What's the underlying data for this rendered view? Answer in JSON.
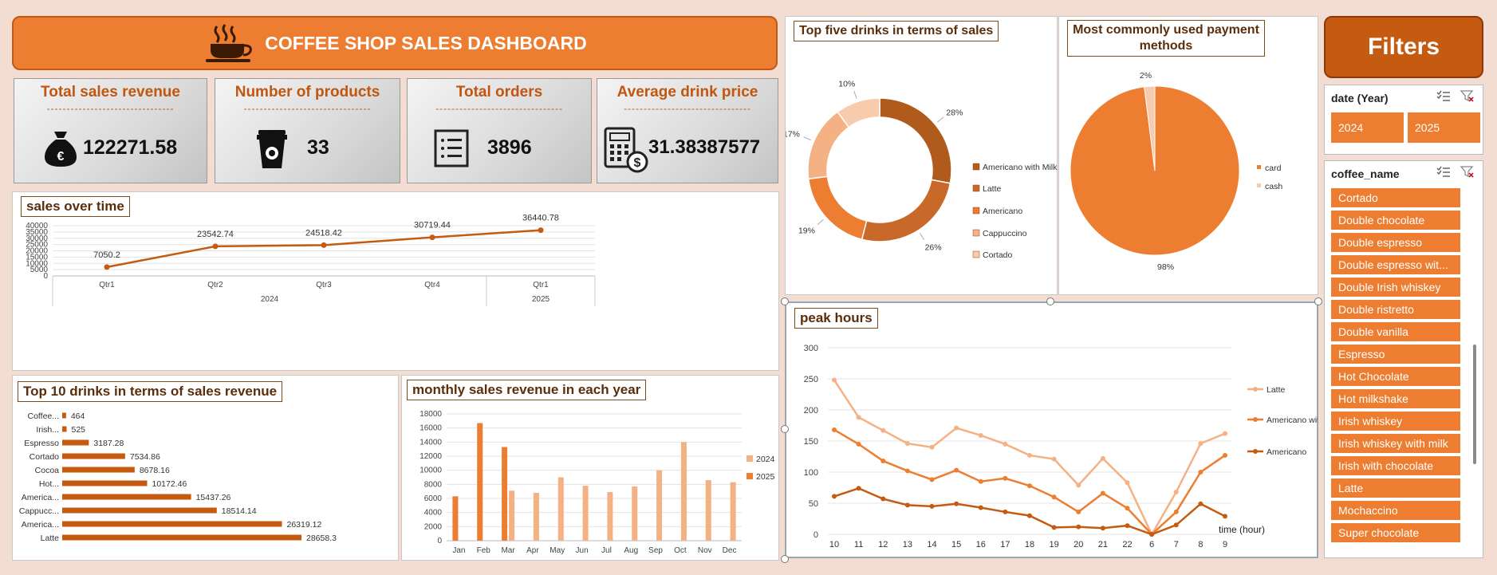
{
  "header": {
    "title": "COFFEE SHOP SALES DASHBOARD",
    "icon": "coffee-cup-icon"
  },
  "kpis": [
    {
      "title": "Total sales revenue",
      "value": "122271.58",
      "icon": "money-bag-icon"
    },
    {
      "title": "Number of products",
      "value": "33",
      "icon": "takeaway-cup-icon"
    },
    {
      "title": "Total orders",
      "value": "3896",
      "icon": "order-list-icon"
    },
    {
      "title": "Average drink price",
      "value": "31.38387577",
      "icon": "calculator-dollar-icon"
    }
  ],
  "kpi_dashes": "--------------------------------",
  "colors": {
    "accent": "#ed7d31",
    "dark": "#c55a11",
    "light": "#f4b183",
    "pale": "#f8cbad"
  },
  "chart_data": [
    {
      "id": "sales_over_time",
      "type": "line",
      "title": "sales over time",
      "categories": [
        "Qtr1",
        "Qtr2",
        "Qtr3",
        "Qtr4",
        "Qtr1"
      ],
      "groups": [
        {
          "label": "2024",
          "span": 4
        },
        {
          "label": "2025",
          "span": 1
        }
      ],
      "values": [
        7050.2,
        23542.74,
        24518.42,
        30719.44,
        36440.78
      ],
      "value_labels": [
        "7050.2",
        "23542.74",
        "24518.42",
        "30719.44",
        "36440.78"
      ],
      "ylim": [
        0,
        40000
      ],
      "yticks": [
        "0",
        "5000",
        "10000",
        "15000",
        "20000",
        "25000",
        "30000",
        "35000",
        "40000"
      ]
    },
    {
      "id": "top10_drinks",
      "type": "bar",
      "title": "Top 10 drinks in terms of sales revenue",
      "categories": [
        "Coffee...",
        "Irish...",
        "Espresso",
        "Cortado",
        "Cocoa",
        "Hot...",
        "America...",
        "Cappucc...",
        "America...",
        "Latte"
      ],
      "values": [
        464,
        525,
        3187.28,
        7534.86,
        8678.16,
        10172.46,
        15437.26,
        18514.14,
        26319.12,
        28658.3
      ],
      "value_labels": [
        "464",
        "525",
        "3187.28",
        "7534.86",
        "8678.16",
        "10172.46",
        "15437.26",
        "18514.14",
        "26319.12",
        "28658.3"
      ]
    },
    {
      "id": "monthly_revenue",
      "type": "bar",
      "title": "monthly sales revenue in each year",
      "categories": [
        "Jan",
        "Feb",
        "Mar",
        "Apr",
        "May",
        "Jun",
        "Jul",
        "Aug",
        "Sep",
        "Oct",
        "Nov",
        "Dec"
      ],
      "series": [
        {
          "name": "2024",
          "values": [
            null,
            null,
            7100,
            6800,
            9000,
            7800,
            6900,
            7700,
            10000,
            14000,
            8600,
            8300
          ]
        },
        {
          "name": "2025",
          "values": [
            6300,
            16700,
            13300,
            null,
            null,
            null,
            null,
            null,
            null,
            null,
            null,
            null
          ]
        }
      ],
      "ylim": [
        0,
        18000
      ],
      "yticks": [
        "0",
        "2000",
        "4000",
        "6000",
        "8000",
        "10000",
        "12000",
        "14000",
        "16000",
        "18000"
      ]
    },
    {
      "id": "top5_drinks",
      "type": "pie",
      "title": "Top five drinks in terms of sales",
      "labels": [
        "Americano with Milk",
        "Latte",
        "Americano",
        "Cappuccino",
        "Cortado"
      ],
      "values": [
        28,
        26,
        19,
        17,
        10
      ],
      "value_labels": [
        "28%",
        "26%",
        "19%",
        "17%",
        "10%"
      ]
    },
    {
      "id": "payment_methods",
      "type": "pie",
      "title": "Most commonly used payment methods",
      "labels": [
        "card",
        "cash"
      ],
      "values": [
        98,
        2
      ],
      "value_labels": [
        "98%",
        "2%"
      ]
    },
    {
      "id": "peak_hours",
      "type": "line",
      "title": "peak hours",
      "categories": [
        "10",
        "11",
        "12",
        "13",
        "14",
        "15",
        "16",
        "17",
        "18",
        "19",
        "20",
        "21",
        "22",
        "6",
        "7",
        "8",
        "9"
      ],
      "xlabel": "time (hour)",
      "series": [
        {
          "name": "Latte",
          "values": [
            248,
            188,
            167,
            146,
            140,
            171,
            159,
            145,
            127,
            121,
            79,
            122,
            83,
            0,
            68,
            146,
            162
          ]
        },
        {
          "name": "Americano with Milk",
          "values": [
            168,
            145,
            118,
            102,
            88,
            103,
            85,
            90,
            78,
            60,
            36,
            66,
            42,
            0,
            36,
            100,
            127
          ]
        },
        {
          "name": "Americano",
          "values": [
            61,
            74,
            57,
            47,
            45,
            49,
            43,
            36,
            30,
            11,
            12,
            10,
            14,
            0,
            15,
            49,
            29
          ]
        }
      ],
      "ylim": [
        0,
        300
      ],
      "yticks": [
        "0",
        "50",
        "100",
        "150",
        "200",
        "250",
        "300"
      ]
    }
  ],
  "filters": {
    "title": "Filters",
    "year_slicer": {
      "header": "date (Year)",
      "items": [
        "2024",
        "2025"
      ]
    },
    "coffee_slicer": {
      "header": "coffee_name",
      "items": [
        "Cortado",
        "Double chocolate",
        "Double espresso",
        "Double espresso wit...",
        "Double Irish whiskey",
        "Double ristretto",
        "Double vanilla",
        "Espresso",
        "Hot Chocolate",
        "Hot milkshake",
        "Irish whiskey",
        "Irish whiskey with milk",
        "Irish with chocolate",
        "Latte",
        "Mochaccino",
        "Super chocolate"
      ]
    }
  }
}
